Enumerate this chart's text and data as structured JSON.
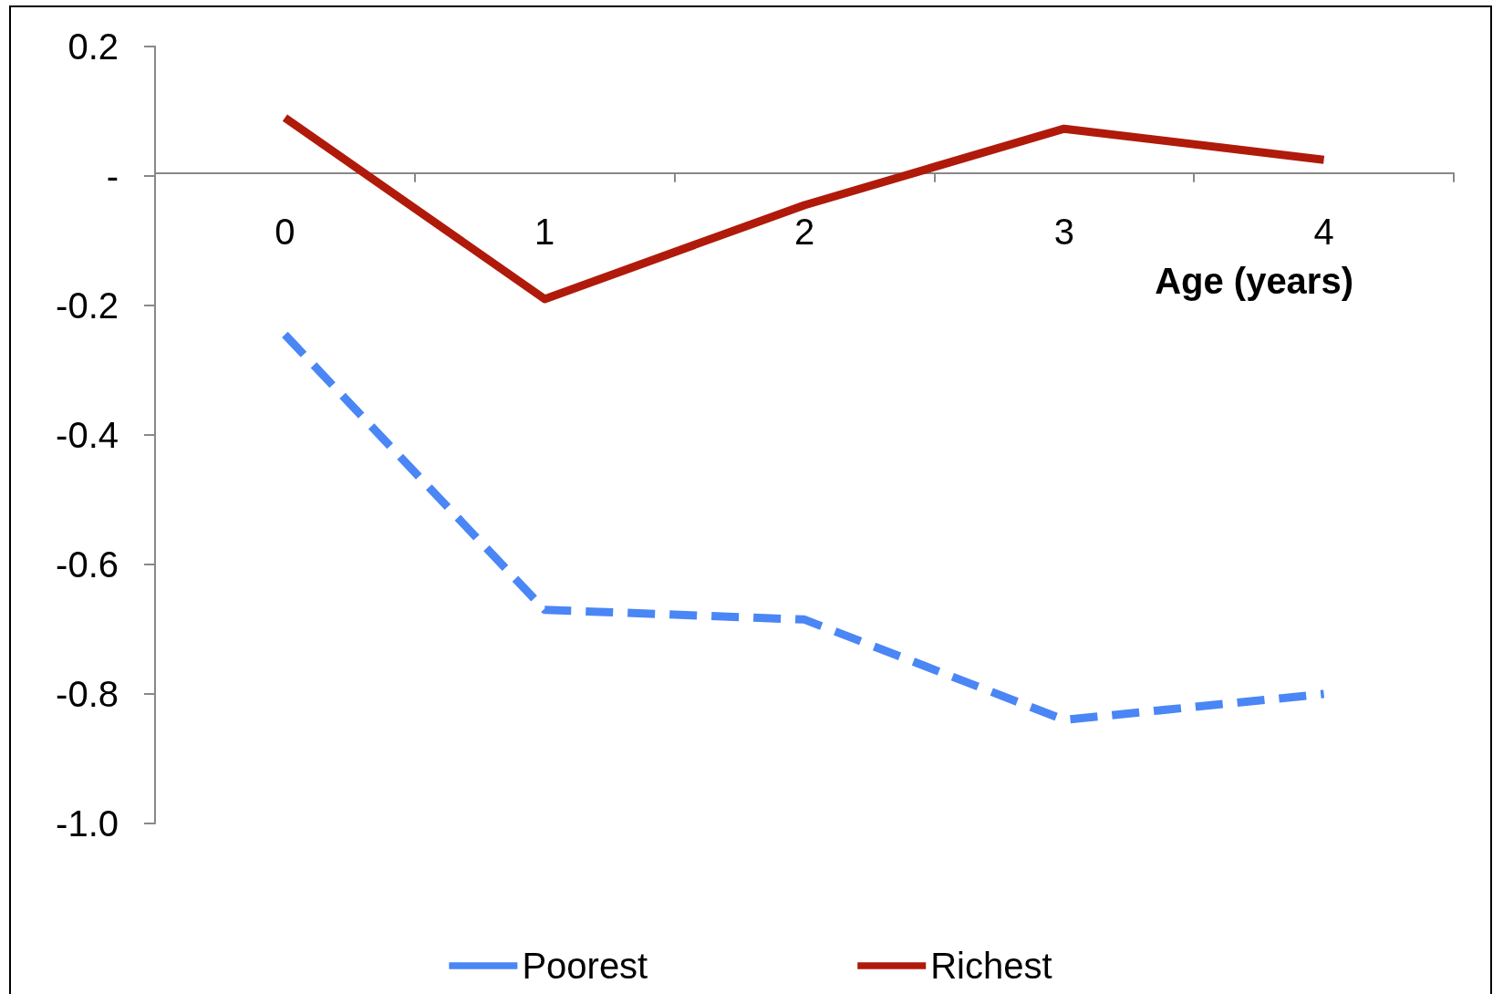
{
  "chart_data": {
    "type": "line",
    "xlabel": "Age (years)",
    "categories": [
      "0",
      "1",
      "2",
      "3",
      "4"
    ],
    "series": [
      {
        "name": "Poorest",
        "color": "#4a86f5",
        "line_style": "dashed",
        "values": [
          -0.245,
          -0.67,
          -0.685,
          -0.84,
          -0.8
        ]
      },
      {
        "name": "Richest",
        "color": "#b01a0a",
        "line_style": "solid",
        "values": [
          0.09,
          -0.19,
          -0.045,
          0.073,
          0.025
        ]
      }
    ],
    "ylim": [
      -1.0,
      0.2
    ],
    "yticks": [
      {
        "value": 0.2,
        "label": "0.2"
      },
      {
        "value": 0,
        "label": "-"
      },
      {
        "value": -0.2,
        "label": "-0.2"
      },
      {
        "value": -0.4,
        "label": "-0.4"
      },
      {
        "value": -0.6,
        "label": "-0.6"
      },
      {
        "value": -0.8,
        "label": "-0.8"
      },
      {
        "value": -1.0,
        "label": "-1.0"
      }
    ],
    "marker": "none",
    "grid": false,
    "legend": "bottom"
  }
}
